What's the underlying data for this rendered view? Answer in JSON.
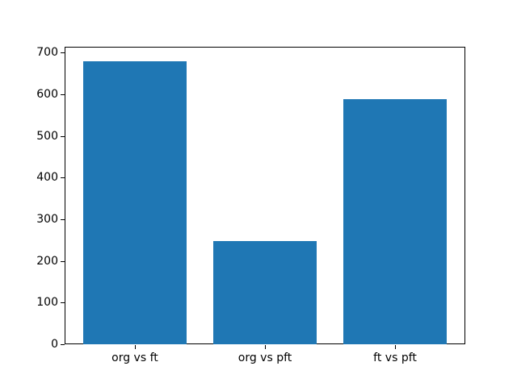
{
  "chart_data": {
    "type": "bar",
    "categories": [
      "org vs ft",
      "org vs pft",
      "ft vs pft"
    ],
    "values": [
      680,
      247,
      588
    ],
    "title": "",
    "xlabel": "",
    "ylabel": "",
    "ylim": [
      0,
      714
    ],
    "yticks": [
      0,
      100,
      200,
      300,
      400,
      500,
      600,
      700
    ],
    "xlim": [
      -0.54,
      2.54
    ],
    "bar_width_units": 0.8,
    "bar_color": "#1f77b4",
    "grid": false,
    "legend": null,
    "background_color": "#ffffff",
    "spine_color": "#000000",
    "tick_text_color": "#000000"
  }
}
